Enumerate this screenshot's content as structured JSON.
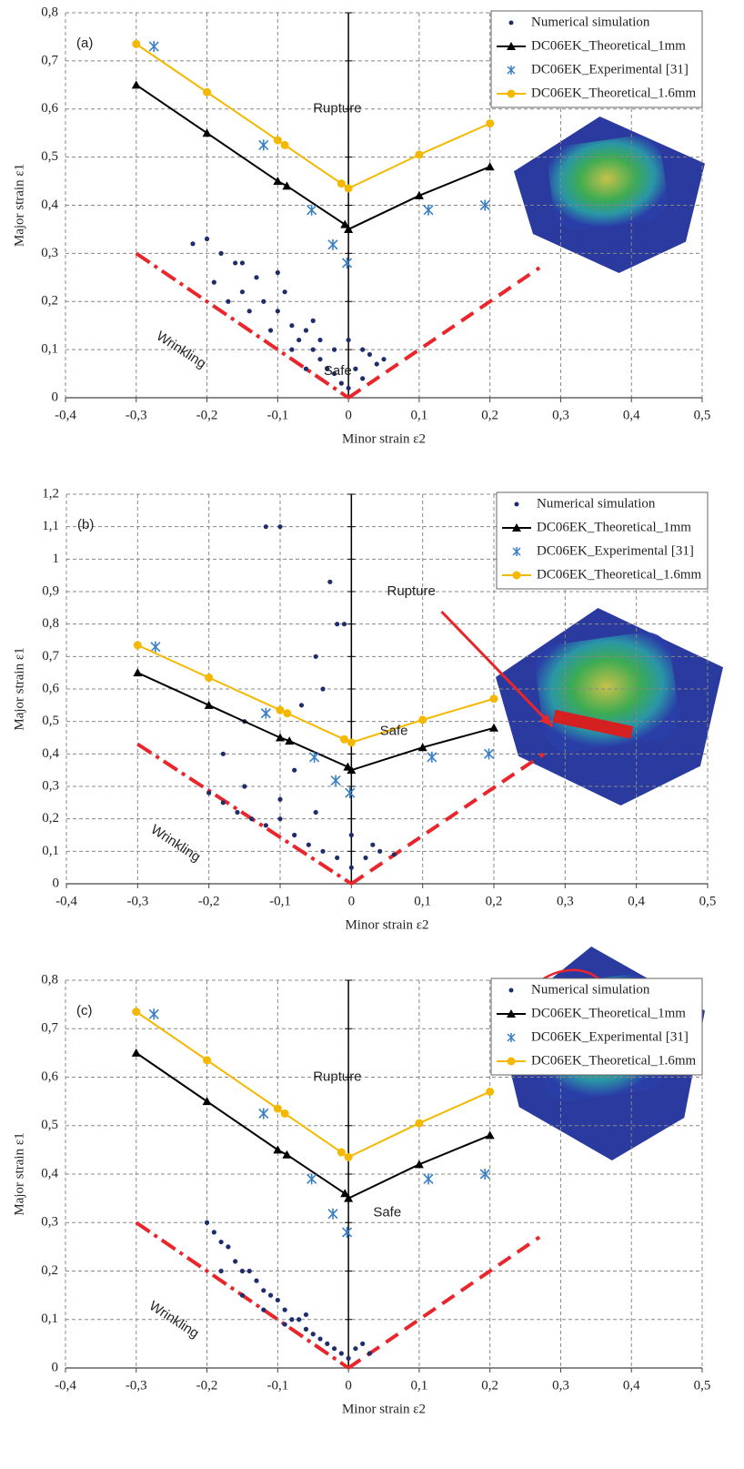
{
  "chart_data": [
    {
      "type": "scatter-line",
      "panel_label": "(a)",
      "x_label": "Minor strain ε2",
      "y_label": "Major strain ε1",
      "annotations": {
        "rupture": "Rupture",
        "safe": "Safe",
        "wrinkling": "Wrinkling"
      },
      "xlim": [
        -0.4,
        0.5
      ],
      "ylim": [
        0,
        0.8
      ],
      "xticks": [
        {
          "value": -0.4,
          "label": "-0,4"
        },
        {
          "value": -0.3,
          "label": "-0,3"
        },
        {
          "value": -0.2,
          "label": "-0,2"
        },
        {
          "value": -0.1,
          "label": "-0,1"
        },
        0,
        {
          "value": 0.1,
          "label": "0,1"
        },
        {
          "value": 0.2,
          "label": "0,2"
        },
        {
          "value": 0.3,
          "label": "0,3"
        },
        {
          "value": 0.4,
          "label": "0,4"
        },
        {
          "value": 0.5,
          "label": "0,5"
        }
      ],
      "yticks": [
        0,
        {
          "value": 0.1,
          "label": "0,1"
        },
        {
          "value": 0.2,
          "label": "0,2"
        },
        {
          "value": 0.3,
          "label": "0,3"
        },
        {
          "value": 0.4,
          "label": "0,4"
        },
        {
          "value": 0.5,
          "label": "0,5"
        },
        {
          "value": 0.6,
          "label": "0,6"
        },
        {
          "value": 0.7,
          "label": "0,7"
        },
        {
          "value": 0.8,
          "label": "0,8"
        }
      ],
      "grid": true,
      "series": [
        {
          "name": "Numerical simulation",
          "color": "#1f2d6b",
          "marker": "dot",
          "x": [
            -0.22,
            -0.2,
            -0.18,
            -0.16,
            -0.15,
            -0.13,
            -0.12,
            -0.1,
            -0.09,
            -0.08,
            -0.07,
            -0.06,
            -0.05,
            -0.04,
            -0.03,
            -0.02,
            -0.01,
            0,
            0.01,
            0.02,
            0.03,
            0.04,
            0.05,
            -0.19,
            -0.17,
            -0.14,
            -0.11,
            -0.08,
            -0.06,
            -0.04,
            -0.02,
            0.0,
            0.02,
            -0.15,
            -0.1,
            -0.05
          ],
          "values": [
            0.32,
            0.33,
            0.3,
            0.28,
            0.22,
            0.25,
            0.2,
            0.18,
            0.22,
            0.15,
            0.12,
            0.14,
            0.1,
            0.08,
            0.06,
            0.05,
            0.03,
            0.02,
            0.06,
            0.1,
            0.09,
            0.07,
            0.08,
            0.24,
            0.2,
            0.18,
            0.14,
            0.1,
            0.06,
            0.12,
            0.1,
            0.12,
            0.04,
            0.28,
            0.26,
            0.16
          ]
        },
        {
          "name": "DC06EK_Theoretical_1mm",
          "color": "#000000",
          "marker": "triangle",
          "x": [
            -0.3,
            -0.2,
            -0.1,
            -0.087,
            -0.005,
            0,
            0.1,
            0.2
          ],
          "values": [
            0.65,
            0.55,
            0.45,
            0.44,
            0.36,
            0.35,
            0.42,
            0.48
          ]
        },
        {
          "name": "DC06EK_Experimental [31]",
          "color": "#3a7fc4",
          "marker": "asterisk",
          "x": [
            -0.275,
            -0.12,
            -0.052,
            -0.022,
            -0.002,
            0.113,
            0.193
          ],
          "values": [
            0.73,
            0.525,
            0.39,
            0.318,
            0.28,
            0.39,
            0.4
          ]
        },
        {
          "name": "DC06EK_Theoretical_1.6mm",
          "color": "#f5b800",
          "marker": "circle",
          "x": [
            -0.3,
            -0.2,
            -0.1,
            -0.09,
            -0.01,
            0,
            0.1,
            0.2
          ],
          "values": [
            0.735,
            0.635,
            0.535,
            0.525,
            0.445,
            0.435,
            0.505,
            0.57
          ]
        }
      ],
      "guide_lines": [
        {
          "color": "#e8262b",
          "style": "dashdot",
          "x": [
            -0.3,
            0
          ],
          "values": [
            0.3,
            0
          ]
        },
        {
          "color": "#e8262b",
          "style": "dashed",
          "x": [
            0,
            0.27
          ],
          "values": [
            0,
            0.27
          ]
        }
      ]
    },
    {
      "type": "scatter-line",
      "panel_label": "(b)",
      "x_label": "Minor strain ε2",
      "y_label": "Major strain ε1",
      "annotations": {
        "rupture": "Rupture",
        "safe": "Safe",
        "wrinkling": "Wrinkling"
      },
      "xlim": [
        -0.4,
        0.5
      ],
      "ylim": [
        0,
        1.2
      ],
      "xticks": [
        {
          "value": -0.4,
          "label": "-0,4"
        },
        {
          "value": -0.3,
          "label": "-0,3"
        },
        {
          "value": -0.2,
          "label": "-0,2"
        },
        {
          "value": -0.1,
          "label": "-0,1"
        },
        0,
        {
          "value": 0.1,
          "label": "0,1"
        },
        {
          "value": 0.2,
          "label": "0,2"
        },
        {
          "value": 0.3,
          "label": "0,3"
        },
        {
          "value": 0.4,
          "label": "0,4"
        },
        {
          "value": 0.5,
          "label": "0,5"
        }
      ],
      "yticks": [
        0,
        {
          "value": 0.1,
          "label": "0,1"
        },
        {
          "value": 0.2,
          "label": "0,2"
        },
        {
          "value": 0.3,
          "label": "0,3"
        },
        {
          "value": 0.4,
          "label": "0,4"
        },
        {
          "value": 0.5,
          "label": "0,5"
        },
        {
          "value": 0.6,
          "label": "0,6"
        },
        {
          "value": 0.7,
          "label": "0,7"
        },
        {
          "value": 0.8,
          "label": "0,8"
        },
        {
          "value": 0.9,
          "label": "0,9"
        },
        1,
        {
          "value": 1.1,
          "label": "1,1"
        },
        {
          "value": 1.2,
          "label": "1,2"
        }
      ],
      "grid": true,
      "series": [
        {
          "name": "Numerical simulation",
          "color": "#1f2d6b",
          "marker": "dot",
          "x": [
            -0.2,
            -0.18,
            -0.16,
            -0.14,
            -0.12,
            -0.1,
            -0.08,
            -0.06,
            -0.04,
            -0.02,
            0,
            0.02,
            0.04,
            0.06,
            -0.15,
            -0.1,
            -0.05,
            0,
            0.03,
            -0.12,
            -0.1,
            -0.03,
            -0.02,
            -0.05,
            -0.07,
            -0.15,
            -0.18,
            -0.01,
            -0.08,
            -0.04
          ],
          "values": [
            0.28,
            0.25,
            0.22,
            0.2,
            0.18,
            0.2,
            0.15,
            0.12,
            0.1,
            0.08,
            0.05,
            0.08,
            0.1,
            0.09,
            0.3,
            0.26,
            0.22,
            0.15,
            0.12,
            1.1,
            1.1,
            0.93,
            0.8,
            0.7,
            0.55,
            0.5,
            0.4,
            0.8,
            0.35,
            0.6
          ]
        },
        {
          "name": "DC06EK_Theoretical_1mm",
          "color": "#000000",
          "marker": "triangle",
          "x": [
            -0.3,
            -0.2,
            -0.1,
            -0.087,
            -0.005,
            0,
            0.1,
            0.2
          ],
          "values": [
            0.65,
            0.55,
            0.45,
            0.44,
            0.36,
            0.35,
            0.42,
            0.48
          ]
        },
        {
          "name": "DC06EK_Experimental [31]",
          "color": "#3a7fc4",
          "marker": "asterisk",
          "x": [
            -0.275,
            -0.12,
            -0.052,
            -0.022,
            -0.002,
            0.113,
            0.193
          ],
          "values": [
            0.73,
            0.525,
            0.39,
            0.318,
            0.28,
            0.39,
            0.4
          ]
        },
        {
          "name": "DC06EK_Theoretical_1.6mm",
          "color": "#f5b800",
          "marker": "circle",
          "x": [
            -0.3,
            -0.2,
            -0.1,
            -0.09,
            -0.01,
            0,
            0.1,
            0.2
          ],
          "values": [
            0.735,
            0.635,
            0.535,
            0.525,
            0.445,
            0.435,
            0.505,
            0.57
          ]
        }
      ],
      "guide_lines": [
        {
          "color": "#e8262b",
          "style": "dashdot",
          "x": [
            -0.3,
            0
          ],
          "values": [
            0.43,
            0
          ]
        },
        {
          "color": "#e8262b",
          "style": "dashed",
          "x": [
            0,
            0.27
          ],
          "values": [
            0,
            0.4
          ]
        }
      ]
    },
    {
      "type": "scatter-line",
      "panel_label": "(c)",
      "x_label": "Minor strain ε2",
      "y_label": "Major strain ε1",
      "annotations": {
        "rupture": "Rupture",
        "safe": "Safe",
        "wrinkling": "Wrinkling"
      },
      "xlim": [
        -0.4,
        0.5
      ],
      "ylim": [
        0,
        0.8
      ],
      "xticks": [
        {
          "value": -0.4,
          "label": "-0,4"
        },
        {
          "value": -0.3,
          "label": "-0,3"
        },
        {
          "value": -0.2,
          "label": "-0,2"
        },
        {
          "value": -0.1,
          "label": "-0,1"
        },
        0,
        {
          "value": 0.1,
          "label": "0,1"
        },
        {
          "value": 0.2,
          "label": "0,2"
        },
        {
          "value": 0.3,
          "label": "0,3"
        },
        {
          "value": 0.4,
          "label": "0,4"
        },
        {
          "value": 0.5,
          "label": "0,5"
        }
      ],
      "yticks": [
        0,
        {
          "value": 0.1,
          "label": "0,1"
        },
        {
          "value": 0.2,
          "label": "0,2"
        },
        {
          "value": 0.3,
          "label": "0,3"
        },
        {
          "value": 0.4,
          "label": "0,4"
        },
        {
          "value": 0.5,
          "label": "0,5"
        },
        {
          "value": 0.6,
          "label": "0,6"
        },
        {
          "value": 0.7,
          "label": "0,7"
        },
        {
          "value": 0.8,
          "label": "0,8"
        }
      ],
      "grid": true,
      "series": [
        {
          "name": "Numerical simulation",
          "color": "#1f2d6b",
          "marker": "dot",
          "x": [
            -0.2,
            -0.19,
            -0.18,
            -0.17,
            -0.16,
            -0.15,
            -0.14,
            -0.13,
            -0.12,
            -0.11,
            -0.1,
            -0.09,
            -0.08,
            -0.07,
            -0.06,
            -0.05,
            -0.04,
            -0.03,
            -0.02,
            -0.01,
            0,
            0.01,
            0.02,
            0.03,
            -0.18,
            -0.15,
            -0.12,
            -0.09,
            -0.06
          ],
          "values": [
            0.3,
            0.28,
            0.26,
            0.25,
            0.22,
            0.2,
            0.2,
            0.18,
            0.16,
            0.15,
            0.14,
            0.12,
            0.1,
            0.1,
            0.08,
            0.07,
            0.06,
            0.05,
            0.04,
            0.03,
            0.02,
            0.04,
            0.05,
            0.03,
            0.2,
            0.15,
            0.12,
            0.09,
            0.11
          ]
        },
        {
          "name": "DC06EK_Theoretical_1mm",
          "color": "#000000",
          "marker": "triangle",
          "x": [
            -0.3,
            -0.2,
            -0.1,
            -0.087,
            -0.005,
            0,
            0.1,
            0.2
          ],
          "values": [
            0.65,
            0.55,
            0.45,
            0.44,
            0.36,
            0.35,
            0.42,
            0.48
          ]
        },
        {
          "name": "DC06EK_Experimental [31]",
          "color": "#3a7fc4",
          "marker": "asterisk",
          "x": [
            -0.275,
            -0.12,
            -0.052,
            -0.022,
            -0.002,
            0.113,
            0.193
          ],
          "values": [
            0.73,
            0.525,
            0.39,
            0.318,
            0.28,
            0.39,
            0.4
          ]
        },
        {
          "name": "DC06EK_Theoretical_1.6mm",
          "color": "#f5b800",
          "marker": "circle",
          "x": [
            -0.3,
            -0.2,
            -0.1,
            -0.09,
            -0.01,
            0,
            0.1,
            0.2
          ],
          "values": [
            0.735,
            0.635,
            0.535,
            0.525,
            0.445,
            0.435,
            0.505,
            0.57
          ]
        }
      ],
      "guide_lines": [
        {
          "color": "#e8262b",
          "style": "dashdot",
          "x": [
            -0.3,
            0
          ],
          "values": [
            0.3,
            0
          ]
        },
        {
          "color": "#e8262b",
          "style": "dashed",
          "x": [
            0,
            0.27
          ],
          "values": [
            0,
            0.27
          ]
        }
      ]
    }
  ]
}
